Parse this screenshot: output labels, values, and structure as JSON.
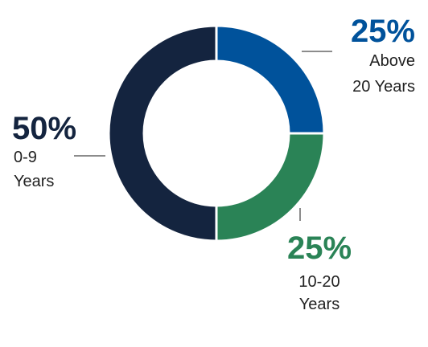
{
  "chart_data": {
    "type": "pie",
    "donut": true,
    "title": "",
    "segments": [
      {
        "name": "Above 20 Years",
        "value": 25,
        "percent_label": "25%",
        "label_lines": [
          "Above",
          "20 Years"
        ],
        "color": "#00529B"
      },
      {
        "name": "10-20 Years",
        "value": 25,
        "percent_label": "25%",
        "label_lines": [
          "10-20",
          "Years"
        ],
        "color": "#2A8356"
      },
      {
        "name": "0-9 Years",
        "value": 50,
        "percent_label": "50%",
        "label_lines": [
          "0-9",
          "Years"
        ],
        "color": "#14243F"
      }
    ],
    "legend": "none"
  }
}
